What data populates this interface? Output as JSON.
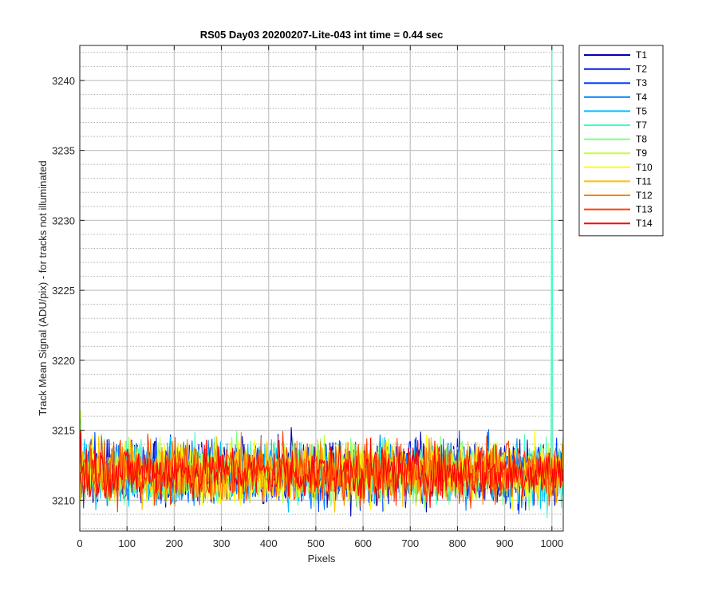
{
  "chart_data": {
    "type": "line",
    "title": "RS05 Day03 20200207-Lite-043 int time = 0.44 sec",
    "xlabel": "Pixels",
    "ylabel": "Track Mean Signal (ADU/pix) - for tracks not illuminated",
    "xlim": [
      0,
      1024
    ],
    "ylim": [
      3207.8,
      3242.5
    ],
    "xticks": [
      0,
      100,
      200,
      300,
      400,
      500,
      600,
      700,
      800,
      900,
      1000
    ],
    "yticks": [
      3210,
      3215,
      3220,
      3225,
      3230,
      3235,
      3240
    ],
    "grid": true,
    "minor_grid": true,
    "legend_position": "outside-top-right",
    "series": [
      {
        "name": "T1",
        "color": "#0000b4",
        "mean": 3212.0,
        "noise": 1.1
      },
      {
        "name": "T2",
        "color": "#0010e0",
        "mean": 3212.0,
        "noise": 1.1
      },
      {
        "name": "T3",
        "color": "#0040ff",
        "mean": 3212.0,
        "noise": 1.1
      },
      {
        "name": "T4",
        "color": "#0080ff",
        "mean": 3212.0,
        "noise": 1.1
      },
      {
        "name": "T5",
        "color": "#00c0ff",
        "mean": 3212.0,
        "noise": 1.1
      },
      {
        "name": "T7",
        "color": "#40ffc0",
        "mean": 3212.0,
        "noise": 1.1,
        "spike": {
          "x": 1000,
          "y": 3243
        }
      },
      {
        "name": "T8",
        "color": "#80ff80",
        "mean": 3212.0,
        "noise": 1.1
      },
      {
        "name": "T9",
        "color": "#c0ff40",
        "mean": 3212.0,
        "noise": 1.1
      },
      {
        "name": "T10",
        "color": "#ffff00",
        "mean": 3212.0,
        "noise": 1.1
      },
      {
        "name": "T11",
        "color": "#ffc000",
        "mean": 3212.0,
        "noise": 1.1
      },
      {
        "name": "T12",
        "color": "#ff8000",
        "mean": 3212.0,
        "noise": 1.1
      },
      {
        "name": "T13",
        "color": "#ff4000",
        "mean": 3212.0,
        "noise": 1.1
      },
      {
        "name": "T14",
        "color": "#ff0000",
        "mean": 3212.0,
        "noise": 1.0
      }
    ]
  }
}
